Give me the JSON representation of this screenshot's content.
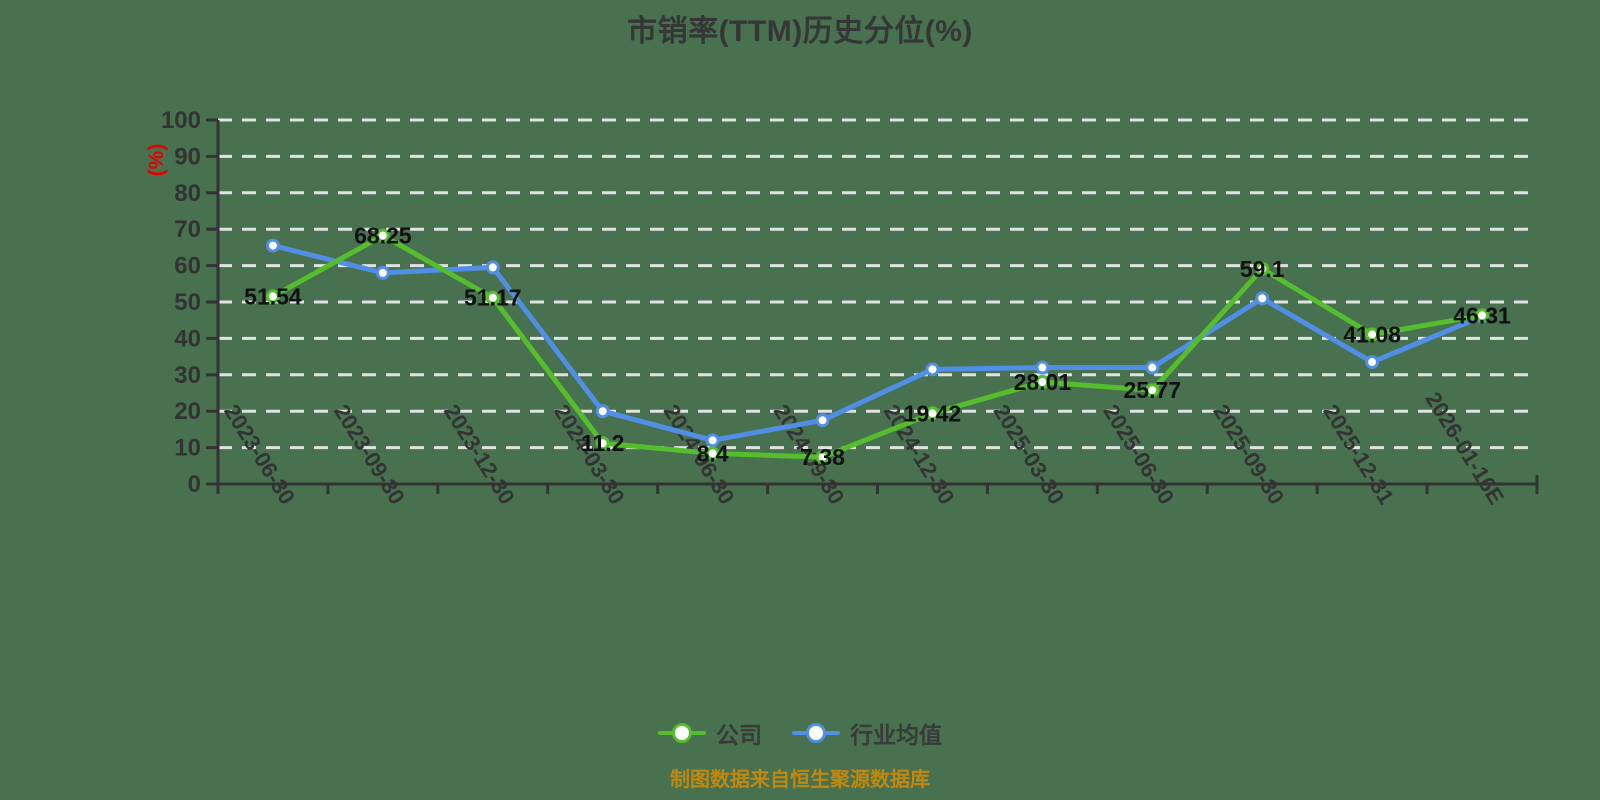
{
  "title": {
    "text": "市销率(TTM)历史分位(%)"
  },
  "y_axis": {
    "name": "(%)",
    "min": 0,
    "max": 100,
    "step": 10
  },
  "footer": {
    "text": "制图数据来自恒生聚源数据库"
  },
  "colors": {
    "background": "#47714F",
    "axis": "#333333",
    "grid": "#E2E2E2",
    "title": "#363636",
    "tick_label": "#333333",
    "data_label": "#111111",
    "y_axis_name": "#E50000",
    "footer": "#C2880E",
    "company": "#55BE2D",
    "industry": "#518EE6",
    "marker_fill": "#FFFFFF"
  },
  "chart_data": {
    "type": "line",
    "title": "市销率(TTM)历史分位(%)",
    "xlabel": "",
    "ylabel": "(%)",
    "ylim": [
      0,
      100
    ],
    "y_tick_step": 10,
    "grid": "horizontal-dashed-white",
    "legend_position": "bottom",
    "categories": [
      "2023-06-30",
      "2023-09-30",
      "2023-12-30",
      "2024-03-30",
      "2024-06-30",
      "2024-09-30",
      "2024-12-30",
      "2025-03-30",
      "2025-06-30",
      "2025-09-30",
      "2025-12-31",
      "2026-01-16E"
    ],
    "series": [
      {
        "name": "公司",
        "color_key": "company",
        "values": [
          51.54,
          68.25,
          51.17,
          11.2,
          8.4,
          7.38,
          19.42,
          28.01,
          25.77,
          59.1,
          41.08,
          46.31
        ],
        "point_labels": [
          "51.54",
          "68.25",
          "51.17",
          "11.2",
          "8.4",
          "7.38",
          "19.42",
          "28.01",
          "25.77",
          "59.1",
          "41.08",
          "46.31"
        ]
      },
      {
        "name": "行业均值",
        "color_key": "industry",
        "values": [
          65.5,
          58,
          59.5,
          20,
          12,
          17.5,
          31.5,
          32,
          32,
          51,
          33.5,
          46
        ],
        "point_labels": []
      }
    ]
  }
}
